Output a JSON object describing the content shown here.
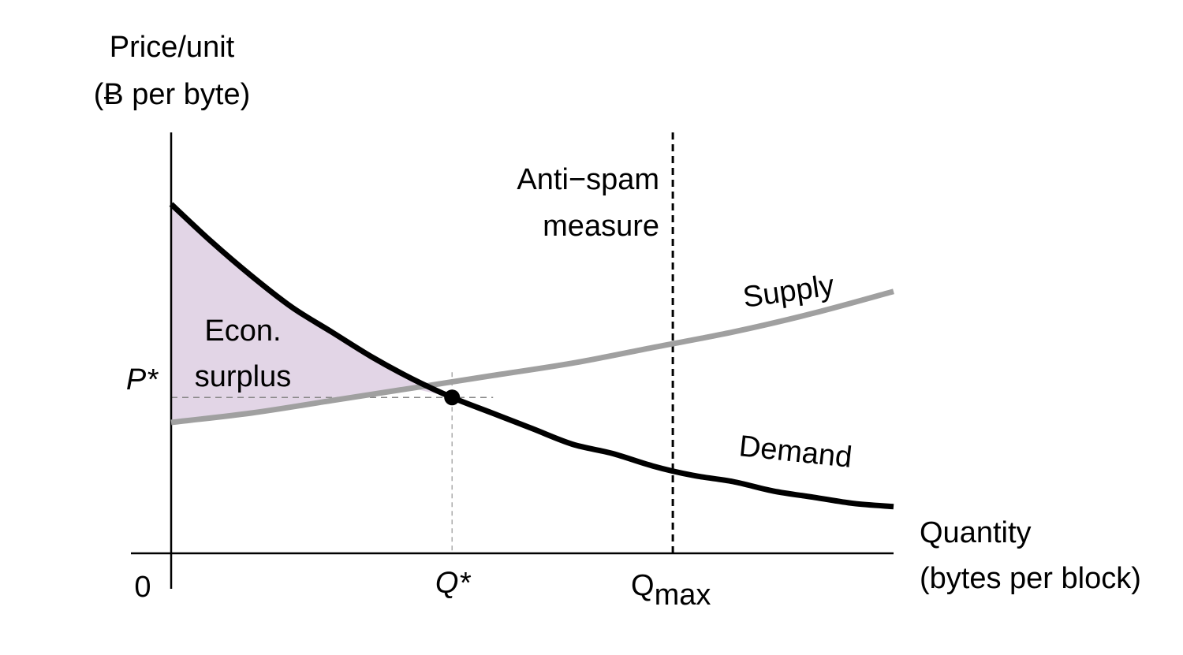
{
  "chart_data": {
    "type": "line",
    "title": "",
    "ylabel_line1": "Price/unit",
    "ylabel_line2": "(Ƀ per byte)",
    "xlabel_line1": "Quantity",
    "xlabel_line2": "(bytes per block)",
    "origin_label": "0",
    "grid": false,
    "x_range": [
      0,
      1.8
    ],
    "y_range": [
      0,
      1.35
    ],
    "series": [
      {
        "name": "Demand",
        "color": "#000000",
        "x": [
          0,
          0.1,
          0.2,
          0.3,
          0.4,
          0.5,
          0.6,
          0.7,
          0.8,
          0.9,
          1.0,
          1.1,
          1.2,
          1.3,
          1.4,
          1.5,
          1.6,
          1.7,
          1.8
        ],
        "y": [
          1.12,
          1.0,
          0.89,
          0.79,
          0.71,
          0.63,
          0.56,
          0.5,
          0.45,
          0.4,
          0.35,
          0.32,
          0.28,
          0.25,
          0.23,
          0.2,
          0.18,
          0.16,
          0.15
        ]
      },
      {
        "name": "Supply",
        "color": "#a0a0a0",
        "x": [
          0,
          0.2,
          0.4,
          0.6,
          0.8,
          1.0,
          1.2,
          1.4,
          1.6,
          1.8
        ],
        "y": [
          0.42,
          0.45,
          0.49,
          0.53,
          0.57,
          0.61,
          0.66,
          0.71,
          0.77,
          0.84
        ]
      }
    ],
    "equilibrium": {
      "x": 0.7,
      "y": 0.5,
      "x_label": "Q*",
      "y_label": "P*"
    },
    "vline": {
      "x": 1.25,
      "label": "Q",
      "label_sub": "max",
      "annotation_line1": "Anti−spam",
      "annotation_line2": "measure"
    },
    "shaded_region": {
      "label_line1": "Econ.",
      "label_line2": "surplus",
      "color": "#e2d5e6"
    }
  }
}
